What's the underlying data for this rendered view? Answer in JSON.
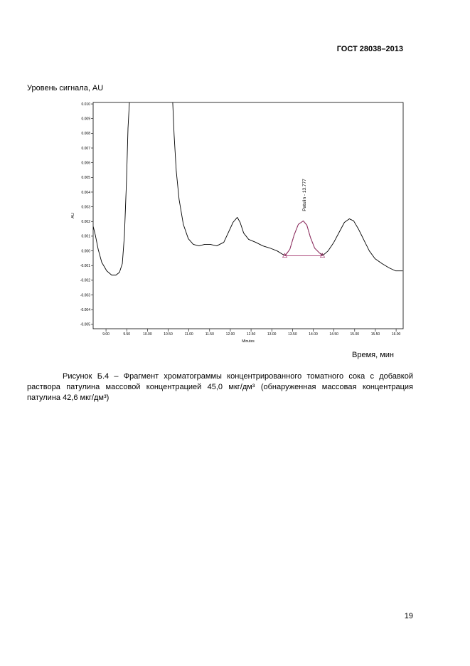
{
  "header": {
    "standard": "ГОСТ 28038–2013"
  },
  "figure": {
    "y_caption": "Уровень сигнала, AU",
    "x_caption": "Время, мин"
  },
  "chart_data": {
    "type": "line",
    "ylabel": "AU",
    "xlabel": "Minutes",
    "annotation": "Patulin - 13.777",
    "xlim": [
      8.69,
      16.17
    ],
    "ylim": [
      -0.0053,
      0.0101
    ],
    "xticks": [
      {
        "value": 9,
        "label": "9.00"
      },
      {
        "value": 9.5,
        "label": "9.50"
      },
      {
        "value": 10,
        "label": "10.00"
      },
      {
        "value": 10.5,
        "label": "10.50"
      },
      {
        "value": 11,
        "label": "11.00"
      },
      {
        "value": 11.5,
        "label": "11.50"
      },
      {
        "value": 12,
        "label": "12.00"
      },
      {
        "value": 12.5,
        "label": "12.50"
      },
      {
        "value": 13,
        "label": "13.00"
      },
      {
        "value": 13.5,
        "label": "13.50"
      },
      {
        "value": 14,
        "label": "14.00"
      },
      {
        "value": 14.5,
        "label": "14.50"
      },
      {
        "value": 15,
        "label": "15.00"
      },
      {
        "value": 15.5,
        "label": "15.50"
      },
      {
        "value": 16,
        "label": "16.00"
      }
    ],
    "yticks": [
      {
        "value": 0.01,
        "label": "0.010"
      },
      {
        "value": 0.009,
        "label": "0.009"
      },
      {
        "value": 0.008,
        "label": "0.008"
      },
      {
        "value": 0.007,
        "label": "0.007"
      },
      {
        "value": 0.006,
        "label": "0.006"
      },
      {
        "value": 0.005,
        "label": "0.005"
      },
      {
        "value": 0.004,
        "label": "0.004"
      },
      {
        "value": 0.003,
        "label": "0.003"
      },
      {
        "value": 0.002,
        "label": "0.002"
      },
      {
        "value": 0.001,
        "label": "0.001"
      },
      {
        "value": 0,
        "label": "0.000"
      },
      {
        "value": -0.001,
        "label": "-0.001"
      },
      {
        "value": -0.002,
        "label": "-0.002"
      },
      {
        "value": -0.003,
        "label": "-0.003"
      },
      {
        "value": -0.004,
        "label": "-0.004"
      },
      {
        "value": -0.005,
        "label": "-0.005"
      }
    ],
    "series": [
      {
        "color": "#000000",
        "x": [
          8.692,
          8.743,
          8.812,
          8.897,
          9.017,
          9.137,
          9.24,
          9.325,
          9.394,
          9.445,
          9.497,
          9.531,
          9.565,
          null,
          10.61,
          10.644,
          10.695,
          10.764,
          10.866,
          10.986,
          11.106,
          11.243,
          11.38,
          11.517,
          11.671,
          11.842,
          11.962,
          12.065,
          12.168,
          12.236,
          12.322,
          12.442,
          12.613,
          12.784,
          12.955,
          13.127,
          13.264,
          13.332,
          13.435,
          13.538,
          13.64,
          13.76,
          13.846,
          13.932,
          14.034,
          14.154,
          14.24,
          14.36,
          14.497,
          14.634,
          14.753,
          14.873,
          14.976,
          15.096,
          15.233,
          15.353,
          15.49,
          15.661,
          15.832,
          15.986,
          16.158
        ],
        "values": [
          0.00165,
          0.00107,
          0.0001,
          -0.00078,
          -0.00136,
          -0.00165,
          -0.00165,
          -0.00146,
          -0.00087,
          0.00107,
          0.00495,
          0.00835,
          0.0101,
          null,
          0.0101,
          0.00786,
          0.00544,
          0.0035,
          0.0018,
          0.00083,
          0.00044,
          0.00034,
          0.00044,
          0.00044,
          0.00034,
          0.00058,
          0.00131,
          0.00194,
          0.00228,
          0.00194,
          0.00121,
          0.00078,
          0.00058,
          0.00034,
          0.00019,
          0,
          -0.00024,
          -0.00029,
          0.0001,
          0.00107,
          0.0018,
          0.00204,
          0.00175,
          0.00092,
          0.00019,
          -0.00015,
          -0.00029,
          0,
          0.00058,
          0.00131,
          0.00194,
          0.00218,
          0.00204,
          0.00146,
          0.00068,
          0,
          -0.00053,
          -0.00087,
          -0.00116,
          -0.00136,
          -0.00136
        ]
      },
      {
        "color": "#a0306a",
        "x": [
          13.315,
          13.435,
          13.538,
          13.64,
          13.76,
          13.846,
          13.932,
          14.034,
          14.154,
          14.223
        ],
        "values": [
          -0.00034,
          0.0001,
          0.00107,
          0.0018,
          0.00204,
          0.00175,
          0.00092,
          0.00019,
          -0.00015,
          -0.00034
        ]
      },
      {
        "color": "#a0306a",
        "markers": "triangle",
        "x": [
          13.315,
          14.223
        ],
        "values": [
          -0.00034,
          -0.00034
        ]
      }
    ]
  },
  "caption": {
    "lead": "Рисунок Б.4 – Фрагмент хроматограммы концентрированного томатного сока с добавкой раствора патулина массовой концентрацией 45,0 мкг/дм³ (обнаруженная массовая концентрация патулина 42,6 мкг/дм³)"
  },
  "page_number": "19"
}
